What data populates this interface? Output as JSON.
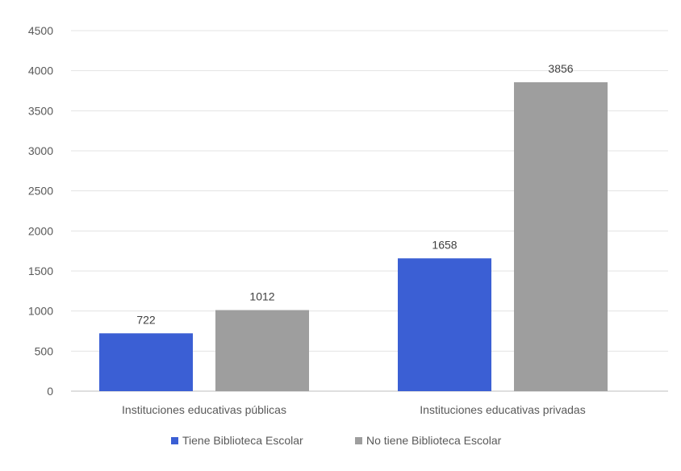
{
  "chart_data": {
    "type": "bar",
    "categories": [
      "Instituciones educativas públicas",
      "Instituciones educativas privadas"
    ],
    "series": [
      {
        "name": "Tiene Biblioteca Escolar",
        "values": [
          722,
          1658
        ],
        "color": "#3b5fd4"
      },
      {
        "name": "No tiene Biblioteca Escolar",
        "values": [
          1012,
          3856
        ],
        "color": "#9e9e9e"
      }
    ],
    "ylim": [
      0,
      4500
    ],
    "yticks": [
      0,
      500,
      1000,
      1500,
      2000,
      2500,
      3000,
      3500,
      4000,
      4500
    ],
    "grid": true,
    "legend": "bottom",
    "title": "",
    "xlabel": "",
    "ylabel": ""
  }
}
